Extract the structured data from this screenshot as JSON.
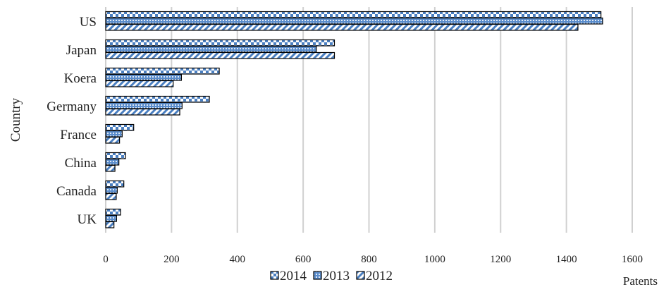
{
  "chart_data": {
    "type": "bar",
    "orientation": "horizontal",
    "categories": [
      "US",
      "Japan",
      "Koera",
      "Germany",
      "France",
      "China",
      "Canada",
      "UK"
    ],
    "series": [
      {
        "name": "2014",
        "values": [
          1505,
          695,
          345,
          315,
          85,
          60,
          55,
          45
        ],
        "pattern": "checker"
      },
      {
        "name": "2013",
        "values": [
          1510,
          640,
          230,
          232,
          50,
          40,
          35,
          33
        ],
        "pattern": "dots"
      },
      {
        "name": "2012",
        "values": [
          1435,
          695,
          205,
          225,
          42,
          28,
          32,
          25
        ],
        "pattern": "diagonal"
      }
    ],
    "xlabel": "Patents",
    "ylabel": "Country",
    "xlim": [
      0,
      1600
    ],
    "xticks": [
      0,
      200,
      400,
      600,
      800,
      1000,
      1200,
      1400,
      1600
    ],
    "grid": "vertical",
    "legend_position": "bottom",
    "colors": {
      "fill": "#4a7fc1",
      "edge": "#000000",
      "grid": "#d0d0d0"
    }
  }
}
